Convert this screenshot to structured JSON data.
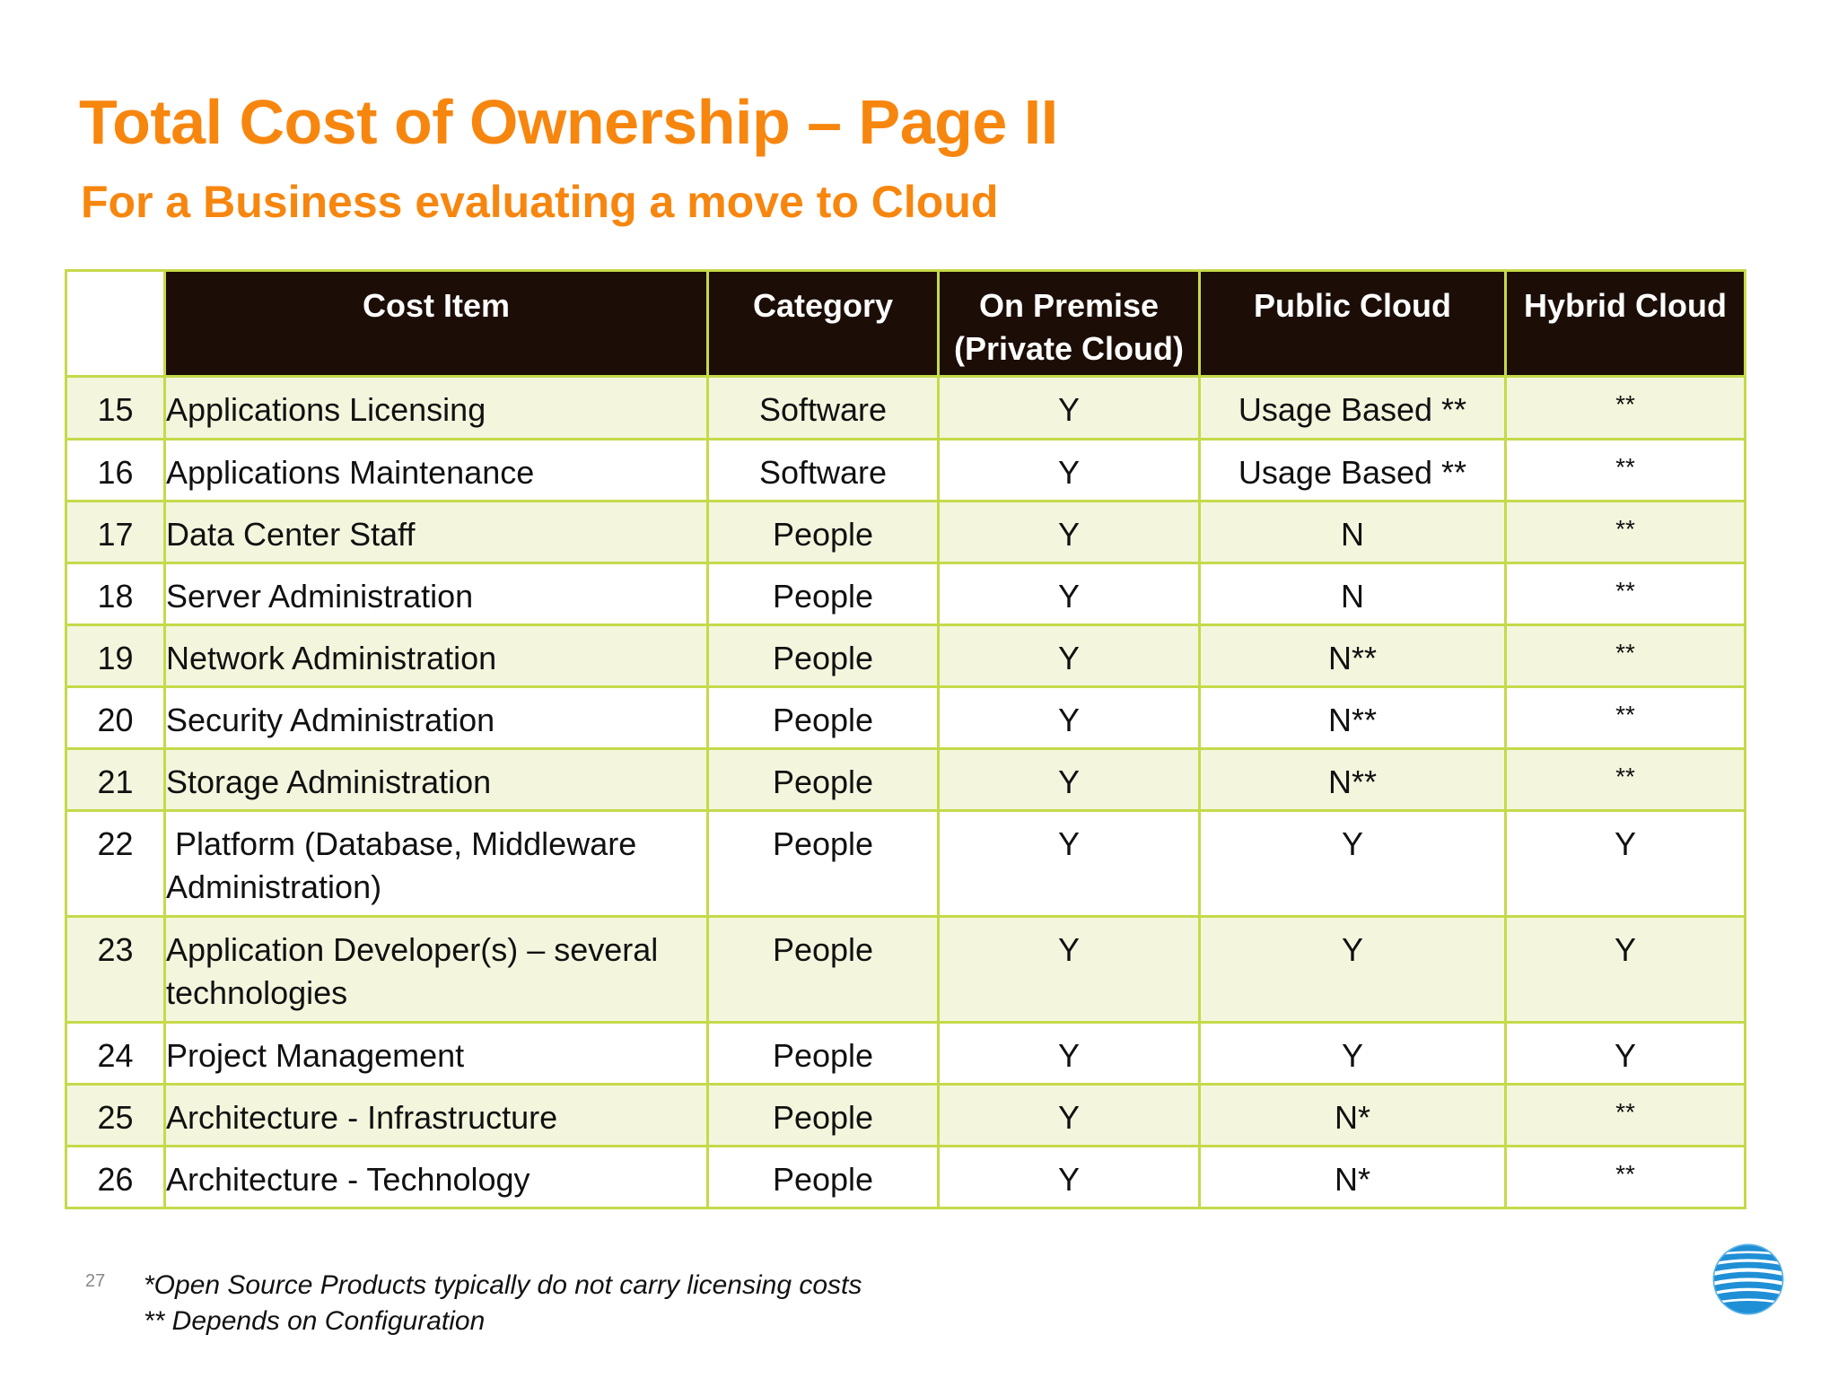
{
  "slide": {
    "title": "Total Cost of Ownership – Page II",
    "subtitle": "For a Business evaluating a move to Cloud",
    "page_number": "27"
  },
  "table": {
    "headers": {
      "blank": "",
      "cost_item": "Cost Item",
      "category": "Category",
      "on_premise": "On Premise (Private Cloud)",
      "public_cloud": "Public Cloud",
      "hybrid_cloud": "Hybrid Cloud"
    },
    "rows": [
      {
        "num": "15",
        "item": "Applications Licensing",
        "category": "Software",
        "on_premise": "Y",
        "public": "Usage Based **",
        "hybrid": "**"
      },
      {
        "num": "16",
        "item": "Applications Maintenance",
        "category": "Software",
        "on_premise": "Y",
        "public": "Usage Based **",
        "hybrid": "**"
      },
      {
        "num": "17",
        "item": "Data Center Staff",
        "category": "People",
        "on_premise": "Y",
        "public": "N",
        "hybrid": "**"
      },
      {
        "num": "18",
        "item": "Server Administration",
        "category": "People",
        "on_premise": "Y",
        "public": "N",
        "hybrid": "**"
      },
      {
        "num": "19",
        "item": "Network Administration",
        "category": "People",
        "on_premise": "Y",
        "public": "N**",
        "hybrid": "**"
      },
      {
        "num": "20",
        "item": "Security Administration",
        "category": "People",
        "on_premise": "Y",
        "public": "N**",
        "hybrid": "**"
      },
      {
        "num": "21",
        "item": "Storage Administration",
        "category": "People",
        "on_premise": "Y",
        "public": "N**",
        "hybrid": "**"
      },
      {
        "num": "22",
        "item": " Platform (Database, Middleware Administration)",
        "category": "People",
        "on_premise": "Y",
        "public": "Y",
        "hybrid": "Y"
      },
      {
        "num": "23",
        "item": "Application Developer(s) – several technologies",
        "category": "People",
        "on_premise": "Y",
        "public": "Y",
        "hybrid": "Y"
      },
      {
        "num": "24",
        "item": "Project Management",
        "category": "People",
        "on_premise": "Y",
        "public": "Y",
        "hybrid": "Y"
      },
      {
        "num": "25",
        "item": "Architecture - Infrastructure",
        "category": "People",
        "on_premise": "Y",
        "public": "N*",
        "hybrid": "**"
      },
      {
        "num": "26",
        "item": "Architecture - Technology",
        "category": "People",
        "on_premise": "Y",
        "public": "N*",
        "hybrid": "**"
      }
    ]
  },
  "footnotes": {
    "note1": "*Open Source Products typically do not carry licensing costs",
    "note2": "** Depends on Configuration"
  },
  "logo": {
    "icon": "att-globe-icon",
    "colors": {
      "blue": "#1f8fd6",
      "white": "#ffffff"
    }
  }
}
